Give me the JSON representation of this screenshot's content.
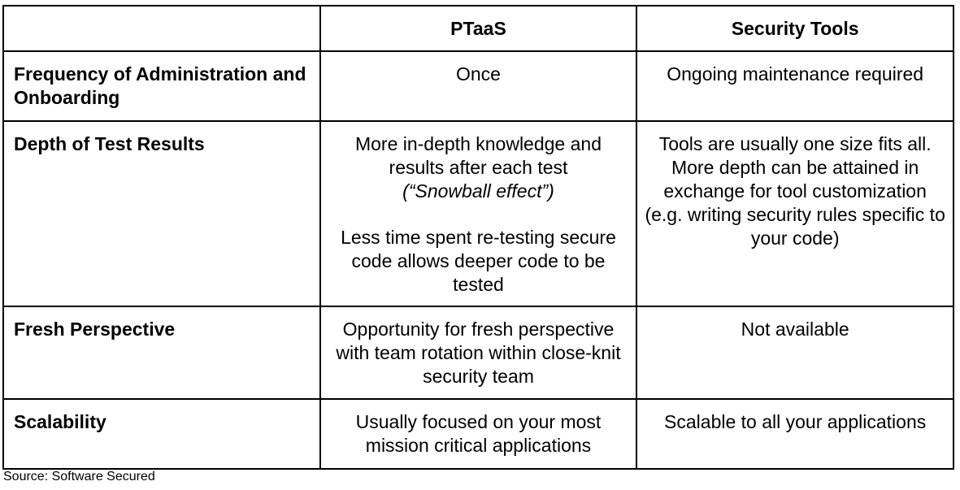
{
  "table": {
    "headers": [
      "",
      "PTaaS",
      "Security Tools"
    ],
    "rows": [
      {
        "label": "Frequency of Administration and Onboarding",
        "ptaas": [
          "Once"
        ],
        "tools": [
          "Ongoing maintenance required"
        ]
      },
      {
        "label": "Depth of Test Results",
        "ptaas": [
          "More in-depth knowledge and results after each test",
          "(“Snowball effect”)",
          "Less time spent re-testing secure code allows deeper code to be tested"
        ],
        "tools": [
          "Tools are usually one size fits all. More depth can be attained in exchange for tool customization (e.g. writing security rules specific to your code)"
        ]
      },
      {
        "label": "Fresh Perspective",
        "ptaas": [
          "Opportunity for fresh perspective with team rotation within close-knit security team"
        ],
        "tools": [
          "Not available"
        ]
      },
      {
        "label": "Scalability",
        "ptaas": [
          "Usually focused on your most mission critical applications"
        ],
        "tools": [
          "Scalable to all your applications"
        ]
      }
    ]
  },
  "source": "Source: Software Secured"
}
